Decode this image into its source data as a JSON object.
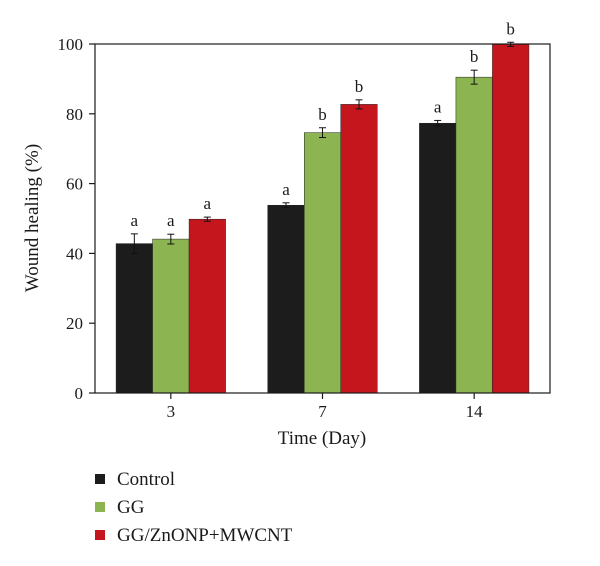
{
  "chart_data": {
    "type": "bar",
    "xlabel": "Time (Day)",
    "ylabel": "Wound healing (%)",
    "ylim": [
      0,
      100
    ],
    "yticks": [
      0,
      20,
      40,
      60,
      80,
      100
    ],
    "categories": [
      "3",
      "7",
      "14"
    ],
    "series": [
      {
        "name": "Control",
        "color": "#1c1c1c",
        "values": [
          42.8,
          53.8,
          77.3
        ],
        "errors": [
          2.8,
          0.7,
          0.8
        ],
        "labels": [
          "a",
          "a",
          "a"
        ]
      },
      {
        "name": "GG",
        "color": "#8cb552",
        "values": [
          44.1,
          74.6,
          90.5
        ],
        "errors": [
          1.4,
          1.4,
          2.0
        ],
        "labels": [
          "a",
          "b",
          "b"
        ]
      },
      {
        "name": "GG/ZnONP+MWCNT",
        "color": "#c4161c",
        "values": [
          49.8,
          82.7,
          99.9
        ],
        "errors": [
          0.6,
          1.3,
          0.6
        ],
        "labels": [
          "a",
          "b",
          "b"
        ]
      }
    ],
    "legend_position": "bottom-left",
    "grid": false
  }
}
